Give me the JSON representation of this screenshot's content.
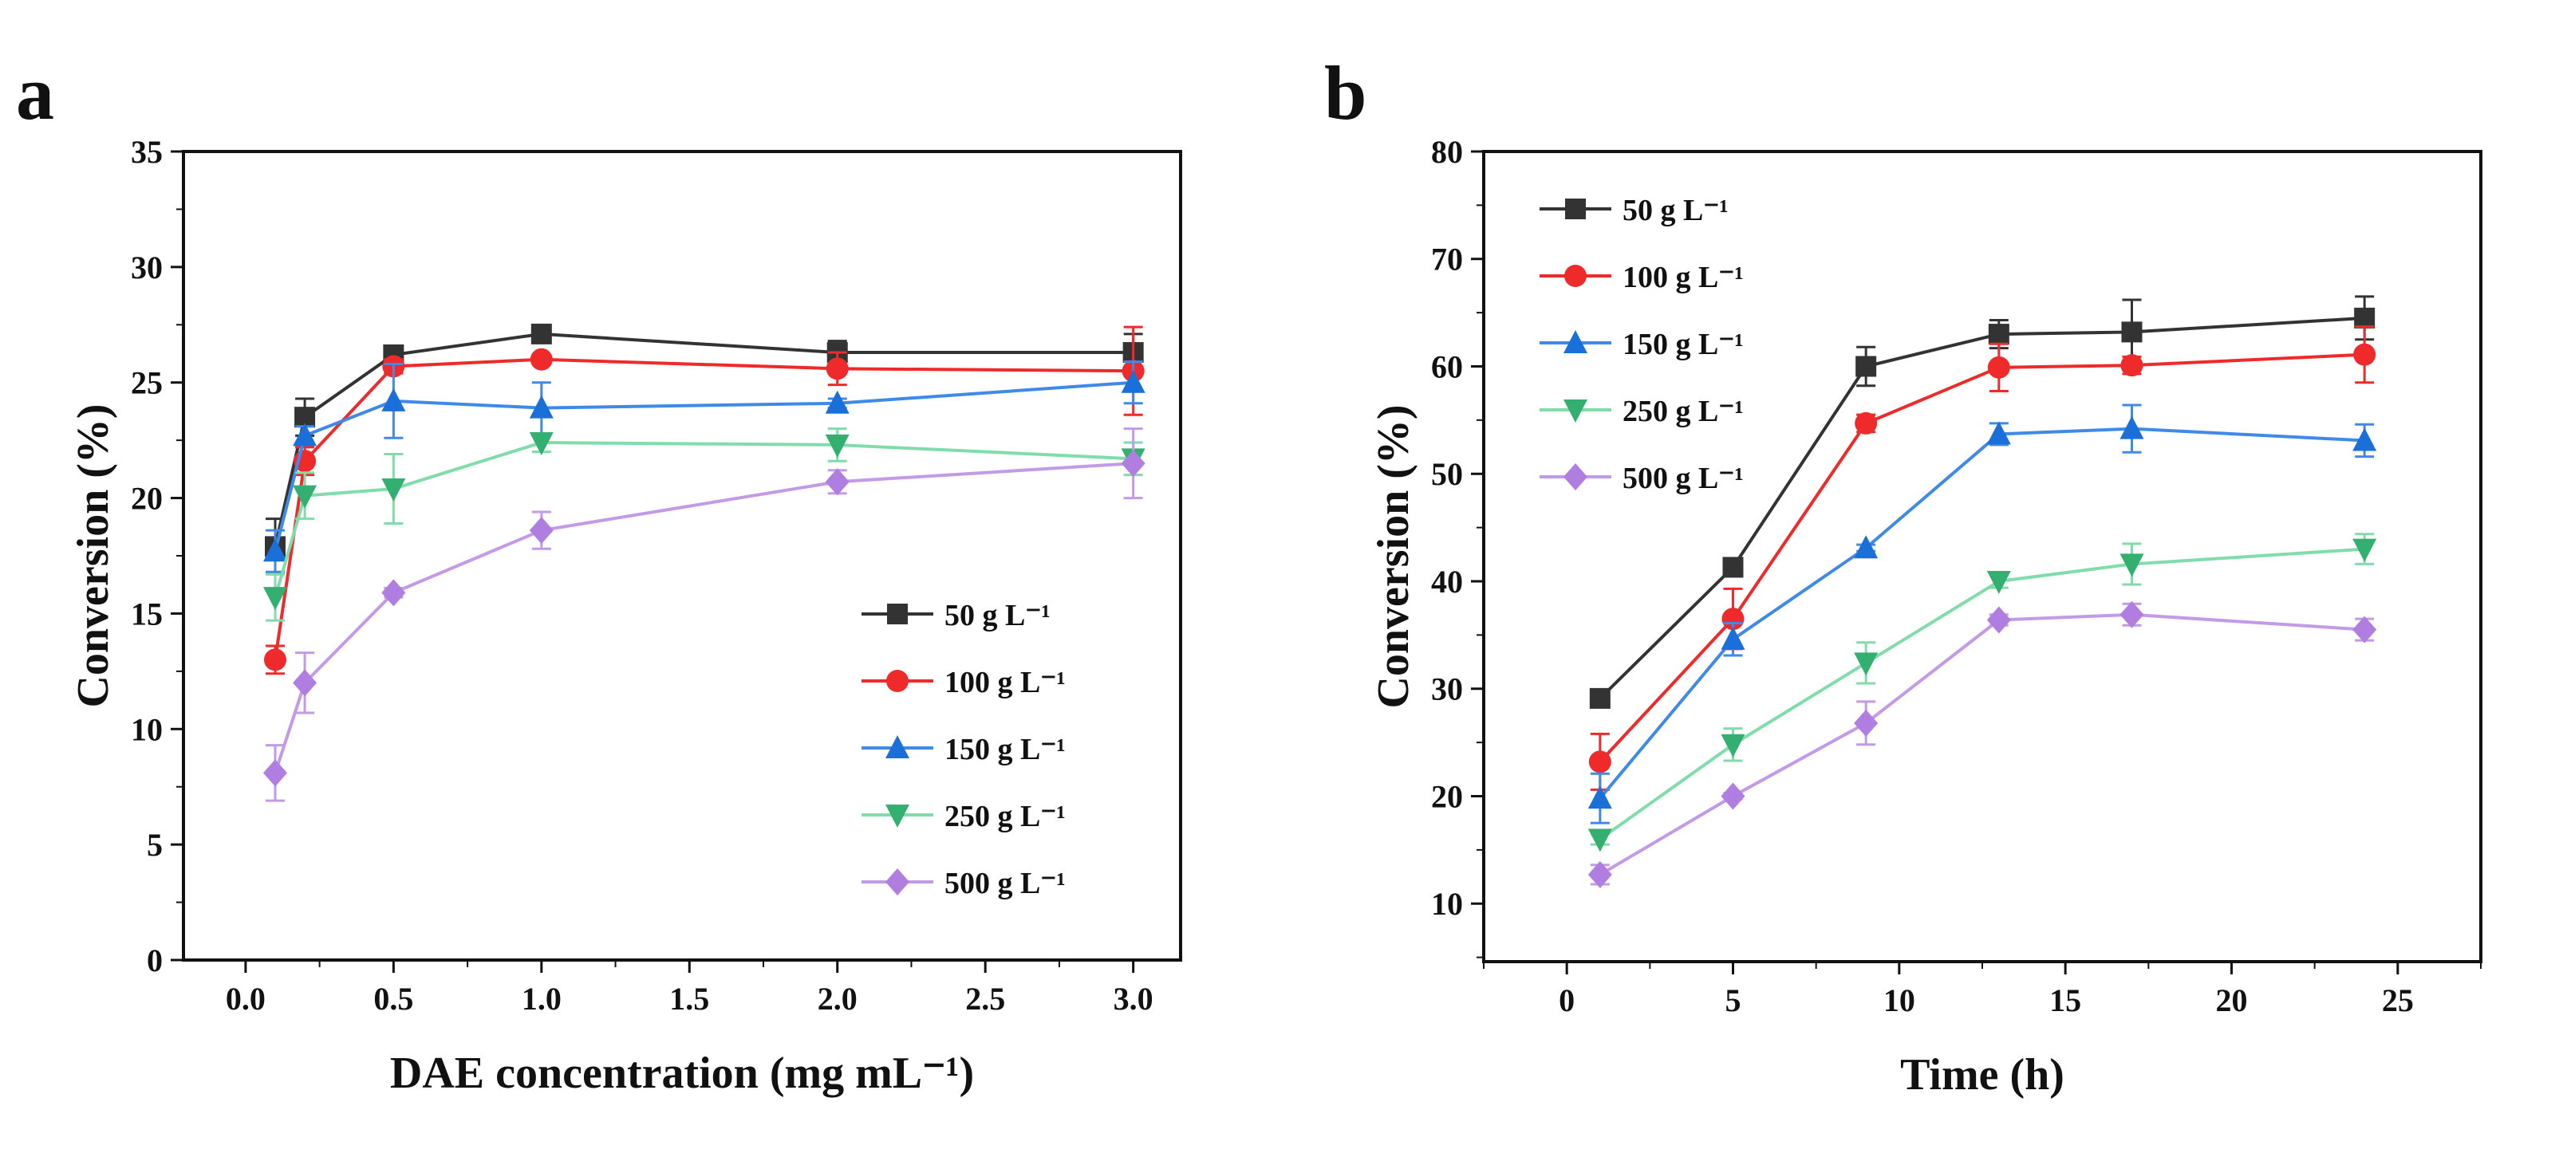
{
  "colors": {
    "50": "#333333",
    "100": "#ee2a2a",
    "150": "#1b6fd9",
    "250": "#33b070",
    "500": "#b07ee0"
  },
  "line_colors": {
    "50": "#333333",
    "100": "#ee2a2a",
    "150": "#3f8ae8",
    "250": "#80dcaa",
    "500": "#c39ae8"
  },
  "chart_data": [
    {
      "panel_label": "a",
      "type": "line",
      "title": "",
      "xlabel": "DAE concentration (mg mL⁻¹)",
      "ylabel": "Conversion (%)",
      "xlim": [
        -0.21,
        3.16
      ],
      "ylim": [
        0,
        35
      ],
      "xticks": [
        0.0,
        0.5,
        1.0,
        1.5,
        2.0,
        2.5,
        3.0
      ],
      "xtick_labels": [
        "0.0",
        "0.5",
        "1.0",
        "1.5",
        "2.0",
        "2.5",
        "3.0"
      ],
      "yticks": [
        0,
        5,
        10,
        15,
        20,
        25,
        30,
        35
      ],
      "ytick_labels": [
        "0",
        "5",
        "10",
        "15",
        "20",
        "25",
        "30",
        "35"
      ],
      "legend_position": "lower-right",
      "x": [
        0.1,
        0.2,
        0.5,
        1.0,
        2.0,
        3.0
      ],
      "series": [
        {
          "name": "50 g L⁻¹",
          "key": "50",
          "marker": "square",
          "values": [
            17.9,
            23.5,
            26.2,
            27.1,
            26.3,
            26.3
          ],
          "errors": [
            1.2,
            0.8,
            0.3,
            0.2,
            0.5,
            0.8
          ]
        },
        {
          "name": "100 g L⁻¹",
          "key": "100",
          "marker": "circle",
          "values": [
            13.0,
            21.6,
            25.7,
            26.0,
            25.6,
            25.5
          ],
          "errors": [
            0.6,
            0.6,
            0.3,
            0.2,
            0.7,
            1.9
          ]
        },
        {
          "name": "150 g L⁻¹",
          "key": "150",
          "marker": "triangle-up",
          "values": [
            17.7,
            22.7,
            24.2,
            23.9,
            24.1,
            25.0
          ],
          "errors": [
            0.9,
            0.4,
            1.6,
            1.1,
            0.2,
            0.9
          ]
        },
        {
          "name": "250 g L⁻¹",
          "key": "250",
          "marker": "triangle-down",
          "values": [
            15.7,
            20.1,
            20.4,
            22.4,
            22.3,
            21.7
          ],
          "errors": [
            1.0,
            1.0,
            1.5,
            0.4,
            0.7,
            0.7
          ]
        },
        {
          "name": "500 g L⁻¹",
          "key": "500",
          "marker": "diamond",
          "values": [
            8.1,
            12.0,
            15.9,
            18.6,
            20.7,
            21.5
          ],
          "errors": [
            1.2,
            1.3,
            0.2,
            0.8,
            0.5,
            1.5
          ]
        }
      ]
    },
    {
      "panel_label": "b",
      "type": "line",
      "title": "",
      "xlabel": "Time (h)",
      "ylabel": "Conversion (%)",
      "xlim": [
        -2.5,
        27.5
      ],
      "ylim": [
        4.6,
        80
      ],
      "xticks": [
        0,
        5,
        10,
        15,
        20,
        25
      ],
      "xtick_labels": [
        "0",
        "5",
        "10",
        "15",
        "20",
        "25"
      ],
      "yticks": [
        10,
        20,
        30,
        40,
        50,
        60,
        70,
        80
      ],
      "ytick_labels": [
        "10",
        "20",
        "30",
        "40",
        "50",
        "60",
        "70",
        "80"
      ],
      "legend_position": "upper-left",
      "x": [
        1,
        5,
        9,
        13,
        17,
        24
      ],
      "series": [
        {
          "name": "50 g L⁻¹",
          "key": "50",
          "marker": "square",
          "values": [
            29.1,
            41.3,
            60.0,
            63.0,
            63.2,
            64.5
          ],
          "errors": [
            0.3,
            0.5,
            1.8,
            1.3,
            3.0,
            2.0
          ]
        },
        {
          "name": "100 g L⁻¹",
          "key": "100",
          "marker": "circle",
          "values": [
            23.2,
            36.5,
            54.7,
            59.9,
            60.1,
            61.1
          ],
          "errors": [
            2.6,
            2.8,
            0.8,
            2.2,
            0.8,
            2.6
          ]
        },
        {
          "name": "150 g L⁻¹",
          "key": "150",
          "marker": "triangle-up",
          "values": [
            19.8,
            34.6,
            43.1,
            53.7,
            54.2,
            53.1
          ],
          "errors": [
            2.3,
            1.5,
            0.3,
            1.0,
            2.2,
            1.5
          ]
        },
        {
          "name": "250 g L⁻¹",
          "key": "250",
          "marker": "triangle-down",
          "values": [
            16.0,
            24.8,
            32.4,
            40.0,
            41.6,
            43.0
          ],
          "errors": [
            0.5,
            1.5,
            1.9,
            0.6,
            1.9,
            1.4
          ]
        },
        {
          "name": "500 g L⁻¹",
          "key": "500",
          "marker": "diamond",
          "values": [
            12.7,
            20.0,
            26.8,
            36.4,
            36.9,
            35.5
          ],
          "errors": [
            0.9,
            0.3,
            2.0,
            0.5,
            1.0,
            1.0
          ]
        }
      ]
    }
  ]
}
